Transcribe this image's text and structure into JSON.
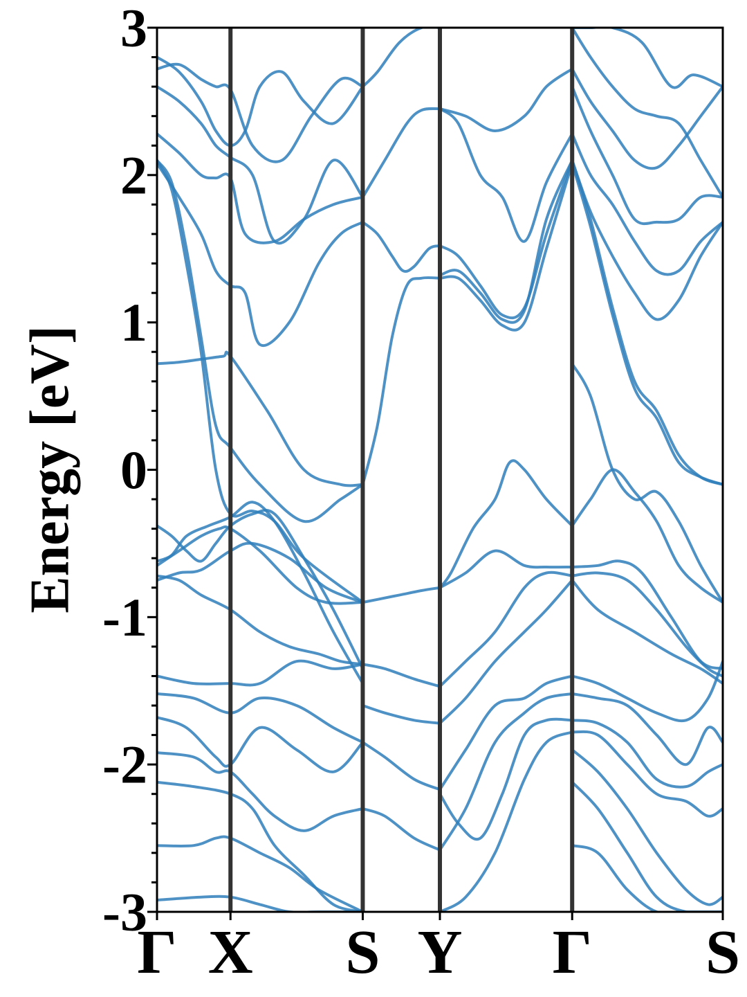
{
  "chart_data": {
    "type": "line",
    "ylabel": "Energy [eV]",
    "ylim": [
      -3,
      3
    ],
    "yticks": [
      "-3",
      "-2",
      "-1",
      "0",
      "1",
      "2",
      "3"
    ],
    "y_minor_step": 0.2,
    "xlim": [
      0,
      7.7
    ],
    "xticks": [
      {
        "pos": 0.0,
        "label": "Γ"
      },
      {
        "pos": 1.0,
        "label": "X"
      },
      {
        "pos": 2.8,
        "label": "S"
      },
      {
        "pos": 3.85,
        "label": "Y"
      },
      {
        "pos": 5.65,
        "label": "Γ"
      },
      {
        "pos": 7.7,
        "label": "S"
      }
    ],
    "band_color": "#2f7fbb",
    "path_line_color": "#333333",
    "bands": [
      {
        "x": [
          0,
          0.3,
          0.6,
          0.85,
          1.0,
          1.4,
          1.9,
          2.3,
          2.8
        ],
        "y": [
          -0.65,
          -0.55,
          -0.45,
          -0.4,
          -0.4,
          -0.55,
          -0.8,
          -0.9,
          -0.9
        ]
      },
      {
        "x": [
          0,
          0.3,
          0.6,
          1.0,
          1.3,
          1.8,
          2.3,
          2.8
        ],
        "y": [
          -0.75,
          -0.7,
          -0.68,
          -0.55,
          -0.5,
          -0.6,
          -0.8,
          -0.9
        ]
      },
      {
        "x": [
          0,
          0.2,
          0.4,
          0.6,
          0.8,
          1.0,
          1.3,
          1.6,
          2.0,
          2.4,
          2.8
        ],
        "y": [
          -0.38,
          -0.45,
          -0.55,
          -0.62,
          -0.5,
          -0.38,
          -0.3,
          -0.3,
          -0.6,
          -0.95,
          -1.35
        ]
      },
      {
        "x": [
          0,
          0.3,
          0.6,
          1.0,
          1.4,
          1.8,
          2.2,
          2.5,
          2.8
        ],
        "y": [
          -0.72,
          -0.75,
          -0.85,
          -0.95,
          -1.1,
          -1.2,
          -1.25,
          -1.3,
          -1.32
        ]
      },
      {
        "x": [
          0,
          0.5,
          1.0,
          1.4,
          1.9,
          2.4,
          2.8
        ],
        "y": [
          -1.4,
          -1.45,
          -1.45,
          -1.45,
          -1.3,
          -1.35,
          -1.32
        ]
      },
      {
        "x": [
          0,
          0.5,
          1.0,
          1.4,
          1.9,
          2.4,
          2.8
        ],
        "y": [
          -1.52,
          -1.55,
          -1.65,
          -1.55,
          -1.6,
          -1.75,
          -1.85
        ]
      },
      {
        "x": [
          0,
          0.4,
          0.8,
          1.0,
          1.4,
          1.9,
          2.4,
          2.8
        ],
        "y": [
          -1.68,
          -1.75,
          -1.95,
          -2.0,
          -1.75,
          -1.9,
          -2.05,
          -1.85
        ]
      },
      {
        "x": [
          0,
          0.5,
          0.8,
          1.0,
          1.3,
          1.6,
          2.0,
          2.4,
          2.8
        ],
        "y": [
          -1.92,
          -1.95,
          -2.05,
          -2.05,
          -2.2,
          -2.35,
          -2.45,
          -2.35,
          -2.3
        ]
      },
      {
        "x": [
          0,
          0.5,
          1.0,
          1.3,
          1.6,
          2.0,
          2.4,
          2.8
        ],
        "y": [
          -2.12,
          -2.15,
          -2.2,
          -2.3,
          -2.55,
          -2.75,
          -2.95,
          -3.0
        ]
      },
      {
        "x": [
          0,
          0.5,
          0.8,
          1.0,
          1.4,
          1.8,
          2.2,
          2.8
        ],
        "y": [
          -2.55,
          -2.55,
          -2.5,
          -2.5,
          -2.6,
          -2.7,
          -2.85,
          -3.0
        ]
      },
      {
        "x": [
          0,
          0.6,
          1.0,
          1.4,
          1.8,
          2.2,
          2.8
        ],
        "y": [
          -2.92,
          -2.9,
          -2.9,
          -2.95,
          -3.0,
          -3.0,
          -3.0
        ]
      },
      {
        "x": [
          0,
          0.3,
          0.6,
          0.9,
          1.0,
          1.5,
          2.0,
          2.5,
          2.8
        ],
        "y": [
          0.72,
          0.73,
          0.75,
          0.77,
          0.77,
          0.4,
          0.0,
          -0.1,
          -0.1
        ]
      },
      {
        "x": [
          0,
          0.2,
          0.4,
          0.6,
          0.8,
          1.0,
          1.4,
          2.0,
          2.5,
          2.8
        ],
        "y": [
          2.1,
          1.95,
          1.5,
          0.9,
          0.3,
          0.15,
          -0.1,
          -0.35,
          -0.2,
          -0.1
        ]
      },
      {
        "x": [
          0,
          0.2,
          0.4,
          0.6,
          0.8,
          1.0,
          1.3,
          1.6,
          2.0,
          2.8
        ],
        "y": [
          2.1,
          1.9,
          1.4,
          0.8,
          0.0,
          -0.3,
          -0.28,
          -0.35,
          -0.6,
          -0.9
        ]
      },
      {
        "x": [
          0,
          0.3,
          0.6,
          0.8,
          1.0,
          1.2,
          1.4,
          1.8,
          2.2,
          2.5,
          2.8
        ],
        "y": [
          2.08,
          1.85,
          1.6,
          1.35,
          1.25,
          1.2,
          0.85,
          1.0,
          1.4,
          1.6,
          1.68
        ]
      },
      {
        "x": [
          0,
          0.3,
          0.6,
          0.8,
          1.0,
          1.2,
          1.6,
          2.0,
          2.4,
          2.8
        ],
        "y": [
          2.28,
          2.15,
          2.0,
          1.98,
          1.98,
          1.6,
          1.55,
          1.7,
          1.8,
          1.85
        ]
      },
      {
        "x": [
          0,
          0.3,
          0.6,
          0.8,
          1.0,
          1.3,
          1.6,
          2.0,
          2.4,
          2.8
        ],
        "y": [
          2.6,
          2.5,
          2.35,
          2.2,
          2.12,
          2.0,
          1.55,
          1.7,
          2.1,
          1.85
        ]
      },
      {
        "x": [
          0,
          0.3,
          0.6,
          0.8,
          1.0,
          1.3,
          1.7,
          2.1,
          2.5,
          2.8
        ],
        "y": [
          2.72,
          2.75,
          2.65,
          2.6,
          2.58,
          2.2,
          2.1,
          2.4,
          2.65,
          2.6
        ]
      },
      {
        "x": [
          0,
          0.3,
          0.6,
          0.8,
          1.0,
          1.2,
          1.4,
          1.7,
          2.0,
          2.4,
          2.8
        ],
        "y": [
          2.8,
          2.7,
          2.5,
          2.3,
          2.2,
          2.3,
          2.6,
          2.7,
          2.5,
          2.35,
          2.6
        ]
      },
      {
        "x": [
          2.8,
          3.0,
          3.3,
          3.6,
          3.85
        ],
        "y": [
          -0.9,
          -0.88,
          -0.85,
          -0.82,
          -0.8
        ]
      },
      {
        "x": [
          2.8,
          3.1,
          3.5,
          3.85
        ],
        "y": [
          -1.32,
          -1.35,
          -1.42,
          -1.47
        ]
      },
      {
        "x": [
          2.8,
          3.1,
          3.5,
          3.85
        ],
        "y": [
          -1.6,
          -1.65,
          -1.7,
          -1.72
        ]
      },
      {
        "x": [
          2.8,
          3.1,
          3.5,
          3.85
        ],
        "y": [
          -1.85,
          -1.95,
          -2.1,
          -2.17
        ]
      },
      {
        "x": [
          2.8,
          3.1,
          3.5,
          3.85
        ],
        "y": [
          -2.3,
          -2.35,
          -2.5,
          -2.58
        ]
      },
      {
        "x": [
          2.8,
          3.0,
          3.2,
          3.4,
          3.6,
          3.85
        ],
        "y": [
          -0.1,
          0.3,
          0.9,
          1.25,
          1.3,
          1.3
        ]
      },
      {
        "x": [
          2.8,
          3.0,
          3.2,
          3.35,
          3.5,
          3.7,
          3.85
        ],
        "y": [
          1.68,
          1.6,
          1.45,
          1.35,
          1.38,
          1.5,
          1.52
        ]
      },
      {
        "x": [
          2.8,
          3.1,
          3.4,
          3.6,
          3.85
        ],
        "y": [
          1.85,
          2.1,
          2.35,
          2.44,
          2.45
        ]
      },
      {
        "x": [
          2.8,
          3.0,
          3.3,
          3.6,
          3.85
        ],
        "y": [
          2.6,
          2.7,
          2.9,
          3.0,
          3.0
        ]
      },
      {
        "x": [
          3.85,
          4.0,
          4.3,
          4.6,
          4.8,
          5.0,
          5.3,
          5.65
        ],
        "y": [
          -0.8,
          -0.7,
          -0.4,
          -0.2,
          0.05,
          0.0,
          -0.2,
          -0.38
        ]
      },
      {
        "x": [
          3.85,
          4.2,
          4.6,
          5.0,
          5.3,
          5.65
        ],
        "y": [
          -0.8,
          -0.7,
          -0.55,
          -0.65,
          -0.66,
          -0.66
        ]
      },
      {
        "x": [
          3.85,
          4.2,
          4.6,
          5.0,
          5.3,
          5.65
        ],
        "y": [
          -1.47,
          -1.3,
          -1.1,
          -0.8,
          -0.7,
          -0.72
        ]
      },
      {
        "x": [
          3.85,
          4.2,
          4.6,
          5.0,
          5.3,
          5.65
        ],
        "y": [
          -1.72,
          -1.55,
          -1.3,
          -1.1,
          -0.95,
          -0.75
        ]
      },
      {
        "x": [
          3.85,
          4.2,
          4.6,
          5.0,
          5.3,
          5.65
        ],
        "y": [
          -2.17,
          -1.9,
          -1.6,
          -1.55,
          -1.45,
          -1.4
        ]
      },
      {
        "x": [
          3.85,
          4.2,
          4.6,
          5.0,
          5.3,
          5.65
        ],
        "y": [
          -2.58,
          -2.3,
          -1.85,
          -1.65,
          -1.55,
          -1.52
        ]
      },
      {
        "x": [
          3.85,
          4.1,
          4.4,
          4.7,
          5.0,
          5.3,
          5.65
        ],
        "y": [
          -2.2,
          -2.4,
          -2.5,
          -2.2,
          -1.8,
          -1.7,
          -1.7
        ]
      },
      {
        "x": [
          3.85,
          4.2,
          4.6,
          5.0,
          5.3,
          5.65
        ],
        "y": [
          -3.0,
          -2.9,
          -2.6,
          -2.1,
          -1.85,
          -1.78
        ]
      },
      {
        "x": [
          3.85,
          4.1,
          4.4,
          4.7,
          5.0,
          5.3,
          5.65
        ],
        "y": [
          1.52,
          1.45,
          1.25,
          1.05,
          1.1,
          1.6,
          2.1
        ]
      },
      {
        "x": [
          3.85,
          4.1,
          4.4,
          4.7,
          5.0,
          5.3,
          5.65
        ],
        "y": [
          1.3,
          1.3,
          1.15,
          0.98,
          1.0,
          1.5,
          2.08
        ]
      },
      {
        "x": [
          3.85,
          4.1,
          4.4,
          4.7,
          5.0,
          5.3,
          5.65
        ],
        "y": [
          1.32,
          1.35,
          1.2,
          1.02,
          1.08,
          1.7,
          2.1
        ]
      },
      {
        "x": [
          3.85,
          4.1,
          4.4,
          4.7,
          5.0,
          5.3,
          5.65
        ],
        "y": [
          2.45,
          2.35,
          2.0,
          1.85,
          1.55,
          1.95,
          2.28
        ]
      },
      {
        "x": [
          3.85,
          4.2,
          4.6,
          5.0,
          5.3,
          5.65
        ],
        "y": [
          2.45,
          2.4,
          2.3,
          2.4,
          2.6,
          2.72
        ]
      },
      {
        "x": [
          5.65,
          5.9,
          6.2,
          6.5,
          6.8,
          7.1,
          7.4,
          7.7
        ],
        "y": [
          0.72,
          0.5,
          0.0,
          -0.2,
          -0.15,
          -0.35,
          -0.65,
          -0.9
        ]
      },
      {
        "x": [
          5.65,
          5.9,
          6.2,
          6.5,
          6.8,
          7.1,
          7.4,
          7.7
        ],
        "y": [
          -0.38,
          -0.2,
          0.0,
          -0.15,
          -0.35,
          -0.65,
          -0.8,
          -0.9
        ]
      },
      {
        "x": [
          5.65,
          6.0,
          6.3,
          6.6,
          7.0,
          7.4,
          7.7
        ],
        "y": [
          -0.66,
          -0.65,
          -0.62,
          -0.7,
          -1.0,
          -1.3,
          -1.35
        ]
      },
      {
        "x": [
          5.65,
          6.0,
          6.4,
          6.8,
          7.2,
          7.5,
          7.7
        ],
        "y": [
          -0.72,
          -0.7,
          -0.75,
          -0.95,
          -1.2,
          -1.35,
          -1.4
        ]
      },
      {
        "x": [
          5.65,
          6.0,
          6.5,
          7.0,
          7.4,
          7.7
        ],
        "y": [
          -0.75,
          -0.95,
          -1.1,
          -1.25,
          -1.35,
          -1.45
        ]
      },
      {
        "x": [
          5.65,
          6.0,
          6.4,
          6.8,
          7.2,
          7.5,
          7.7
        ],
        "y": [
          -1.4,
          -1.45,
          -1.55,
          -1.65,
          -1.7,
          -1.55,
          -1.3
        ]
      },
      {
        "x": [
          5.65,
          6.0,
          6.4,
          6.8,
          7.2,
          7.5,
          7.7
        ],
        "y": [
          -1.52,
          -1.55,
          -1.6,
          -1.8,
          -2.0,
          -1.75,
          -1.85
        ]
      },
      {
        "x": [
          5.65,
          6.0,
          6.4,
          6.8,
          7.2,
          7.5,
          7.7
        ],
        "y": [
          -1.7,
          -1.72,
          -1.85,
          -2.1,
          -2.15,
          -2.05,
          -2.0
        ]
      },
      {
        "x": [
          5.65,
          6.0,
          6.4,
          6.8,
          7.2,
          7.5,
          7.7
        ],
        "y": [
          -1.78,
          -1.8,
          -2.0,
          -2.2,
          -2.25,
          -2.35,
          -2.3
        ]
      },
      {
        "x": [
          5.65,
          6.0,
          6.4,
          6.8,
          7.2,
          7.5,
          7.7
        ],
        "y": [
          -1.9,
          -2.05,
          -2.3,
          -2.6,
          -2.85,
          -2.95,
          -2.9
        ]
      },
      {
        "x": [
          5.65,
          6.0,
          6.4,
          6.8,
          7.2,
          7.7
        ],
        "y": [
          -2.12,
          -2.3,
          -2.6,
          -2.9,
          -3.0,
          -3.0
        ]
      },
      {
        "x": [
          5.65,
          6.0,
          6.4,
          6.8,
          7.2,
          7.7
        ],
        "y": [
          -2.55,
          -2.6,
          -2.85,
          -3.0,
          -3.0,
          -3.0
        ]
      },
      {
        "x": [
          5.65,
          5.9,
          6.2,
          6.5,
          6.8,
          7.1,
          7.4,
          7.7
        ],
        "y": [
          2.1,
          1.7,
          1.1,
          0.6,
          0.4,
          0.1,
          -0.05,
          -0.1
        ]
      },
      {
        "x": [
          5.65,
          5.9,
          6.2,
          6.5,
          6.8,
          7.1,
          7.4,
          7.7
        ],
        "y": [
          2.08,
          1.65,
          1.05,
          0.55,
          0.35,
          0.05,
          -0.05,
          -0.1
        ]
      },
      {
        "x": [
          5.65,
          5.9,
          6.2,
          6.5,
          6.8,
          7.1,
          7.4,
          7.7
        ],
        "y": [
          2.1,
          1.75,
          1.45,
          1.2,
          1.02,
          1.15,
          1.45,
          1.68
        ]
      },
      {
        "x": [
          5.65,
          5.9,
          6.2,
          6.5,
          6.8,
          7.1,
          7.4,
          7.7
        ],
        "y": [
          2.28,
          2.0,
          1.8,
          1.55,
          1.35,
          1.35,
          1.55,
          1.68
        ]
      },
      {
        "x": [
          5.65,
          5.9,
          6.2,
          6.5,
          6.8,
          7.1,
          7.4,
          7.7
        ],
        "y": [
          2.6,
          2.3,
          2.0,
          1.7,
          1.68,
          1.7,
          1.85,
          1.85
        ]
      },
      {
        "x": [
          5.65,
          5.9,
          6.2,
          6.5,
          6.8,
          7.1,
          7.4,
          7.7
        ],
        "y": [
          2.72,
          2.5,
          2.3,
          2.1,
          2.05,
          2.2,
          2.4,
          2.6
        ]
      },
      {
        "x": [
          5.65,
          5.9,
          6.2,
          6.5,
          6.8,
          7.1,
          7.4,
          7.7
        ],
        "y": [
          3.0,
          2.8,
          2.6,
          2.45,
          2.4,
          2.35,
          2.1,
          1.85
        ]
      },
      {
        "x": [
          5.65,
          5.9,
          6.2,
          6.6,
          7.0,
          7.3,
          7.7
        ],
        "y": [
          3.0,
          3.0,
          3.0,
          2.9,
          2.6,
          2.68,
          2.6
        ]
      },
      {
        "x": [
          0,
          0.2,
          0.4,
          0.7,
          1.0,
          1.3,
          1.6,
          2.0,
          2.4,
          2.8
        ],
        "y": [
          -0.62,
          -0.58,
          -0.45,
          -0.38,
          -0.32,
          -0.22,
          -0.35,
          -0.7,
          -1.1,
          -1.45
        ]
      }
    ]
  }
}
